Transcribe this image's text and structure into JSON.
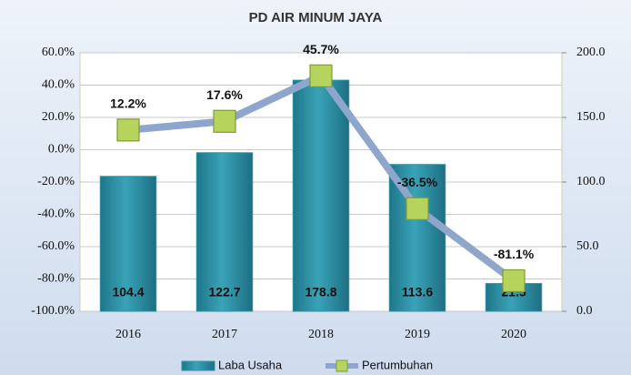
{
  "chart_data": {
    "type": "combo",
    "title": "PD AIR MINUM JAYA",
    "categories": [
      "2016",
      "2017",
      "2018",
      "2019",
      "2020"
    ],
    "series": [
      {
        "name": "Laba Usaha",
        "type": "bar",
        "axis": "y2",
        "color": "#2f93a8",
        "values": [
          104.4,
          122.7,
          178.8,
          113.6,
          21.5
        ]
      },
      {
        "name": "Pertumbuhan",
        "type": "line",
        "axis": "y",
        "color": "#8fa6cc",
        "marker_color": "#b6d45c",
        "values": [
          12.2,
          17.6,
          45.7,
          -36.5,
          -81.1
        ],
        "value_labels": [
          "12.2%",
          "17.6%",
          "45.7%",
          "-36.5%",
          "-81.1%"
        ]
      }
    ],
    "ylim": [
      -100,
      60
    ],
    "yticks": [
      {
        "value": -100,
        "label": "-100.0%"
      },
      {
        "value": -80,
        "label": "-80.0%"
      },
      {
        "value": -60,
        "label": "-60.0%"
      },
      {
        "value": -40,
        "label": "-40.0%"
      },
      {
        "value": -20,
        "label": "-20.0%"
      },
      {
        "value": 0,
        "label": "0.0%"
      },
      {
        "value": 20,
        "label": "20.0%"
      },
      {
        "value": 40,
        "label": "40.0%"
      },
      {
        "value": 60,
        "label": "60.0%"
      }
    ],
    "y2lim": [
      0,
      200
    ],
    "y2ticks": [
      {
        "value": 0,
        "label": "0.0"
      },
      {
        "value": 50,
        "label": "50.0"
      },
      {
        "value": 100,
        "label": "100.0"
      },
      {
        "value": 150,
        "label": "150.0"
      },
      {
        "value": 200,
        "label": "200.0"
      }
    ],
    "grid": true,
    "legend": "bottom"
  }
}
